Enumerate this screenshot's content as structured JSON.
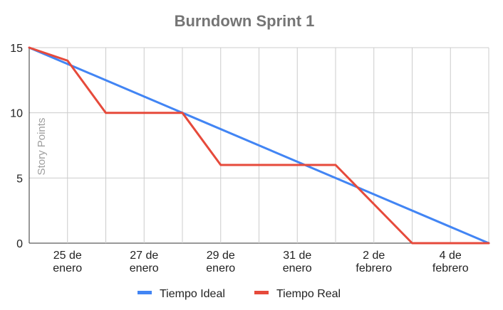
{
  "chart_data": {
    "type": "line",
    "title": "Burndown Sprint 1",
    "ylabel": "Story Points",
    "xlabel": "",
    "ylim": [
      0,
      15
    ],
    "yticks": [
      0,
      5,
      10,
      15
    ],
    "xlim": [
      0,
      12
    ],
    "x_tick_labels": [
      {
        "x": 1,
        "label": [
          "25 de",
          "enero"
        ]
      },
      {
        "x": 3,
        "label": [
          "27 de",
          "enero"
        ]
      },
      {
        "x": 5,
        "label": [
          "29 de",
          "enero"
        ]
      },
      {
        "x": 7,
        "label": [
          "31 de",
          "enero"
        ]
      },
      {
        "x": 9,
        "label": [
          "2 de",
          "febrero"
        ]
      },
      {
        "x": 11,
        "label": [
          "4 de",
          "febrero"
        ]
      }
    ],
    "grid": true,
    "legend_position": "bottom",
    "series": [
      {
        "name": "Tiempo Ideal",
        "color": "#4285f4",
        "points": [
          [
            0,
            15
          ],
          [
            12,
            0
          ]
        ]
      },
      {
        "name": "Tiempo Real",
        "color": "#e64a3b",
        "points": [
          [
            0,
            15
          ],
          [
            1,
            14
          ],
          [
            2,
            10
          ],
          [
            4,
            10
          ],
          [
            5,
            6
          ],
          [
            8,
            6
          ],
          [
            10,
            0
          ],
          [
            12,
            0
          ]
        ]
      }
    ]
  }
}
